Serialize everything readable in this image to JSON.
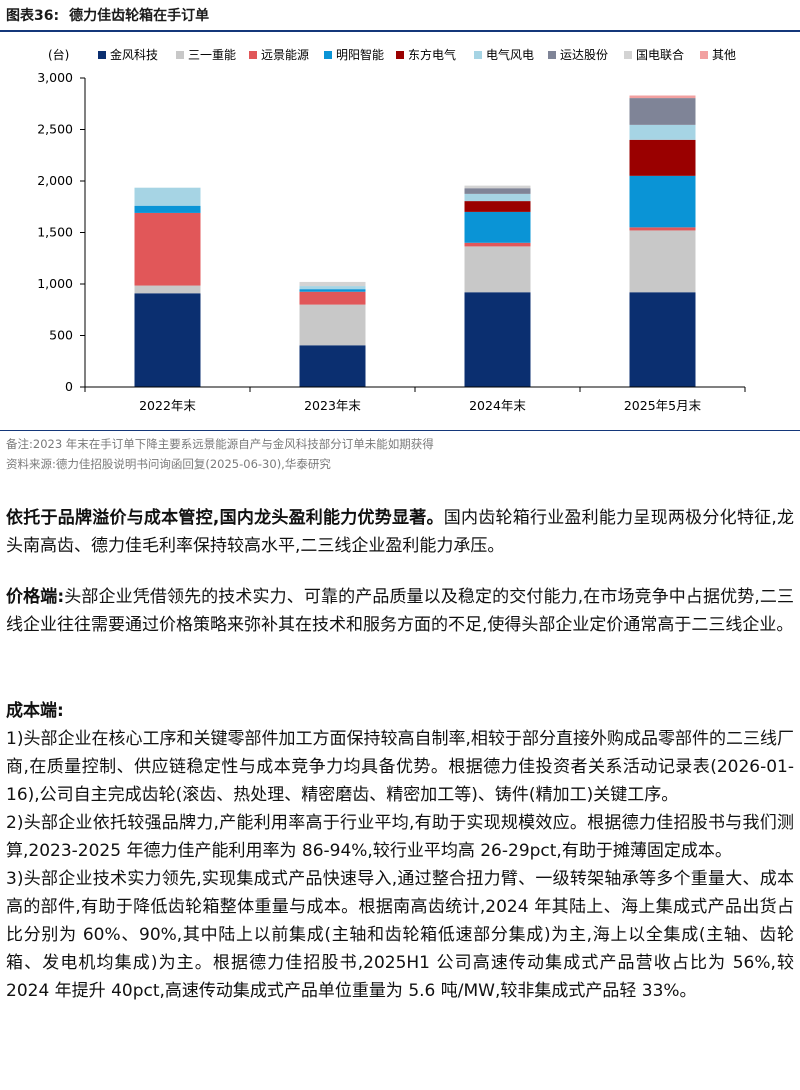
{
  "figure": {
    "number": "图表36:",
    "title": "德力佳齿轮箱在手订单"
  },
  "chart_data": {
    "type": "bar",
    "stacked": true,
    "unit_label": "(台)",
    "categories": [
      "2022年末",
      "2023年末",
      "2024年末",
      "2025年5月末"
    ],
    "ylim": [
      0,
      3000
    ],
    "yticks": [
      "0",
      "500",
      "1,000",
      "1,500",
      "2,000",
      "2,500",
      "3,000"
    ],
    "ytick_values": [
      0,
      500,
      1000,
      1500,
      2000,
      2500,
      3000
    ],
    "grid": false,
    "legend_position": "top",
    "series": [
      {
        "name": "金风科技",
        "color": "#0b2f70",
        "values": [
          910,
          405,
          920,
          920
        ]
      },
      {
        "name": "三一重能",
        "color": "#c8c8c8",
        "values": [
          75,
          395,
          445,
          600
        ]
      },
      {
        "name": "远景能源",
        "color": "#e15759",
        "values": [
          705,
          125,
          35,
          30
        ]
      },
      {
        "name": "明阳智能",
        "color": "#0a94d6",
        "values": [
          70,
          25,
          300,
          500
        ]
      },
      {
        "name": "东方电气",
        "color": "#9a0000",
        "values": [
          0,
          0,
          105,
          350
        ]
      },
      {
        "name": "电气风电",
        "color": "#a6d4e4",
        "values": [
          175,
          30,
          70,
          145
        ]
      },
      {
        "name": "运达股份",
        "color": "#7f8497",
        "values": [
          0,
          0,
          55,
          260
        ]
      },
      {
        "name": "国电联合",
        "color": "#d3d3d3",
        "values": [
          0,
          40,
          25,
          0
        ]
      },
      {
        "name": "其他",
        "color": "#f2a0a0",
        "values": [
          0,
          0,
          0,
          25
        ]
      }
    ]
  },
  "notes": {
    "remark": "备注:2023 年末在手订单下降主要系远景能源自产与金风科技部分订单未能如期获得",
    "source": "资料来源:德力佳招股说明书问询函回复(2025-06-30),华泰研究"
  },
  "paragraphs": {
    "p1_bold": "依托于品牌溢价与成本管控,国内龙头盈利能力优势显著。",
    "p1_text": "国内齿轮箱行业盈利能力呈现两极分化特征,龙头南高齿、德力佳毛利率保持较高水平,二三线企业盈利能力承压。",
    "p2_bold": "价格端:",
    "p2_text": "头部企业凭借领先的技术实力、可靠的产品质量以及稳定的交付能力,在市场竞争中占据优势,二三线企业往往需要通过价格策略来弥补其在技术和服务方面的不足,使得头部企业定价通常高于二三线企业。",
    "p3_heading": "成本端:",
    "p3_item1": "1)头部企业在核心工序和关键零部件加工方面保持较高自制率,相较于部分直接外购成品零部件的二三线厂商,在质量控制、供应链稳定性与成本竞争力均具备优势。根据德力佳投资者关系活动记录表(2026-01-16),公司自主完成齿轮(滚齿、热处理、精密磨齿、精密加工等)、铸件(精加工)关键工序。",
    "p3_item2": "2)头部企业依托较强品牌力,产能利用率高于行业平均,有助于实现规模效应。根据德力佳招股书与我们测算,2023-2025 年德力佳产能利用率为 86-94%,较行业平均高 26-29pct,有助于摊薄固定成本。",
    "p3_item3": "3)头部企业技术实力领先,实现集成式产品快速导入,通过整合扭力臂、一级转架轴承等多个重量大、成本高的部件,有助于降低齿轮箱整体重量与成本。根据南高齿统计,2024 年其陆上、海上集成式产品出货占比分别为 60%、90%,其中陆上以前集成(主轴和齿轮箱低速部分集成)为主,海上以全集成(主轴、齿轮箱、发电机均集成)为主。根据德力佳招股书,2025H1 公司高速传动集成式产品营收占比为 56%,较 2024 年提升 40pct,高速传动集成式产品单位重量为 5.6 吨/MW,较非集成式产品轻 33%。"
  }
}
